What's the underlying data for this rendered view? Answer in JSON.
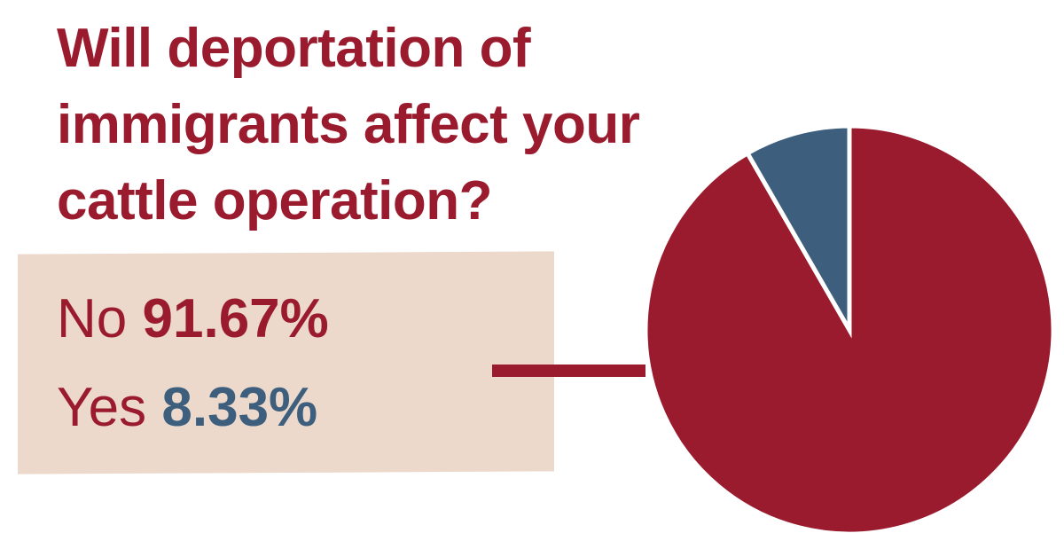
{
  "chart_data": {
    "type": "pie",
    "title": "Will deportation of immigrants affect your cattle operation?",
    "categories": [
      "No",
      "Yes"
    ],
    "values": [
      91.67,
      8.33
    ],
    "value_labels": [
      "91.67%",
      "8.33%"
    ],
    "colors": [
      "#9a1b2d",
      "#3d5f7d"
    ]
  }
}
